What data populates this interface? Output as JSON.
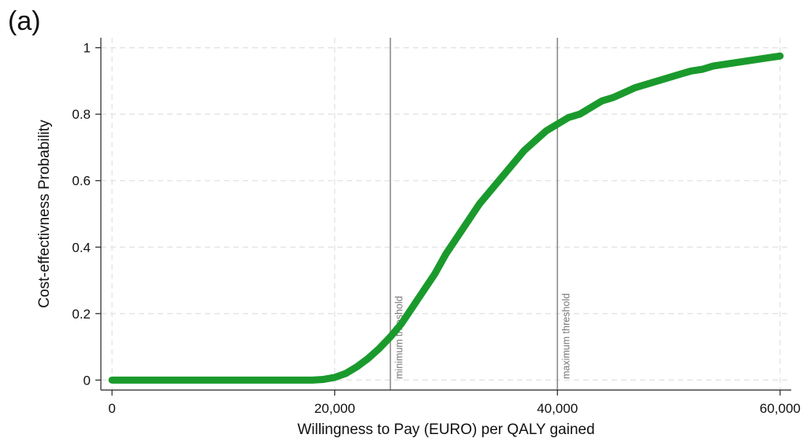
{
  "panel_label": "(a)",
  "chart_data": {
    "type": "line",
    "title": "",
    "xlabel": "Willingness to Pay (EURO) per QALY gained",
    "ylabel": "Cost-effectivness Probability",
    "xlim": [
      -1000,
      61000
    ],
    "ylim": [
      -0.03,
      1.03
    ],
    "x_ticks": [
      0,
      20000,
      40000,
      60000
    ],
    "x_tick_labels": [
      "0",
      "20,000",
      "40,000",
      "60,000"
    ],
    "y_ticks": [
      0,
      0.2,
      0.4,
      0.6,
      0.8,
      1
    ],
    "y_tick_labels": [
      "0",
      "0.2",
      "0.4",
      "0.6",
      "0.8",
      "1"
    ],
    "grid": true,
    "series_color": "#1a9a2c",
    "reference_lines": [
      {
        "x": 25000,
        "label": "minimum threshold"
      },
      {
        "x": 40000,
        "label": "maximum threshold"
      }
    ],
    "series": [
      {
        "x": [
          0,
          5000,
          10000,
          15000,
          18000,
          19000,
          20000,
          21000,
          22000,
          23000,
          24000,
          25000,
          26000,
          27000,
          28000,
          29000,
          30000,
          31000,
          32000,
          33000,
          34000,
          35000,
          36000,
          37000,
          38000,
          39000,
          40000,
          41000,
          42000,
          43000,
          44000,
          45000,
          46000,
          47000,
          48000,
          49000,
          50000,
          51000,
          52000,
          53000,
          54000,
          55000,
          56000,
          57000,
          58000,
          59000,
          60000
        ],
        "values": [
          0,
          0,
          0,
          0,
          0,
          0.002,
          0.008,
          0.02,
          0.04,
          0.065,
          0.095,
          0.13,
          0.17,
          0.22,
          0.27,
          0.32,
          0.38,
          0.43,
          0.48,
          0.53,
          0.57,
          0.61,
          0.65,
          0.69,
          0.72,
          0.75,
          0.77,
          0.79,
          0.8,
          0.82,
          0.84,
          0.85,
          0.865,
          0.88,
          0.89,
          0.9,
          0.91,
          0.92,
          0.93,
          0.935,
          0.945,
          0.95,
          0.955,
          0.96,
          0.965,
          0.97,
          0.975
        ]
      }
    ]
  }
}
